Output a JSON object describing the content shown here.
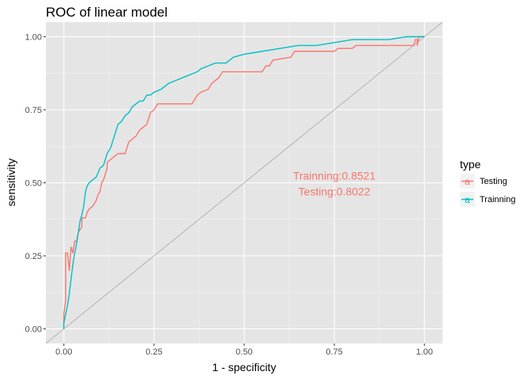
{
  "chart_data": {
    "type": "line",
    "title": "ROC of linear model",
    "xlabel": "1 - specificity",
    "ylabel": "sensitivity",
    "xlim": [
      -0.05,
      1.05
    ],
    "ylim": [
      -0.05,
      1.05
    ],
    "x_ticks": [
      "0.00",
      "0.25",
      "0.50",
      "0.75",
      "1.00"
    ],
    "y_ticks": [
      "0.00",
      "0.25",
      "0.50",
      "0.75",
      "1.00"
    ],
    "grid": true,
    "background": "#e5e5e5",
    "diagonal_reference": true,
    "legend": {
      "title": "type",
      "position": "right",
      "entries": [
        "Testing",
        "Trainning"
      ]
    },
    "annotations": [
      {
        "text": "Trainning:0.8521",
        "x": 0.75,
        "y": 0.525
      },
      {
        "text": "Testing:0.8022",
        "x": 0.75,
        "y": 0.47
      }
    ],
    "series": [
      {
        "name": "Testing",
        "color": "#f8766d",
        "points": [
          [
            0,
            0
          ],
          [
            0,
            0.05
          ],
          [
            0.005,
            0.1
          ],
          [
            0.005,
            0.26
          ],
          [
            0.01,
            0.26
          ],
          [
            0.015,
            0.2
          ],
          [
            0.02,
            0.28
          ],
          [
            0.025,
            0.26
          ],
          [
            0.03,
            0.3
          ],
          [
            0.035,
            0.3
          ],
          [
            0.04,
            0.33
          ],
          [
            0.05,
            0.35
          ],
          [
            0.05,
            0.38
          ],
          [
            0.06,
            0.38
          ],
          [
            0.065,
            0.4
          ],
          [
            0.07,
            0.41
          ],
          [
            0.08,
            0.42
          ],
          [
            0.09,
            0.44
          ],
          [
            0.095,
            0.46
          ],
          [
            0.1,
            0.47
          ],
          [
            0.105,
            0.5
          ],
          [
            0.11,
            0.51
          ],
          [
            0.115,
            0.53
          ],
          [
            0.12,
            0.55
          ],
          [
            0.12,
            0.57
          ],
          [
            0.13,
            0.58
          ],
          [
            0.14,
            0.59
          ],
          [
            0.15,
            0.6
          ],
          [
            0.16,
            0.6
          ],
          [
            0.17,
            0.6
          ],
          [
            0.175,
            0.62
          ],
          [
            0.18,
            0.64
          ],
          [
            0.19,
            0.65
          ],
          [
            0.2,
            0.66
          ],
          [
            0.205,
            0.67
          ],
          [
            0.21,
            0.68
          ],
          [
            0.22,
            0.69
          ],
          [
            0.23,
            0.7
          ],
          [
            0.235,
            0.72
          ],
          [
            0.24,
            0.74
          ],
          [
            0.25,
            0.75
          ],
          [
            0.26,
            0.77
          ],
          [
            0.31,
            0.77
          ],
          [
            0.355,
            0.77
          ],
          [
            0.37,
            0.8
          ],
          [
            0.38,
            0.81
          ],
          [
            0.4,
            0.82
          ],
          [
            0.41,
            0.84
          ],
          [
            0.43,
            0.86
          ],
          [
            0.44,
            0.88
          ],
          [
            0.5,
            0.88
          ],
          [
            0.55,
            0.88
          ],
          [
            0.56,
            0.9
          ],
          [
            0.57,
            0.9
          ],
          [
            0.58,
            0.92
          ],
          [
            0.63,
            0.93
          ],
          [
            0.64,
            0.95
          ],
          [
            0.75,
            0.95
          ],
          [
            0.76,
            0.96
          ],
          [
            0.77,
            0.96
          ],
          [
            0.78,
            0.96
          ],
          [
            0.79,
            0.96
          ],
          [
            0.8,
            0.96
          ],
          [
            0.81,
            0.97
          ],
          [
            0.82,
            0.97
          ],
          [
            0.83,
            0.97
          ],
          [
            0.84,
            0.97
          ],
          [
            0.85,
            0.97
          ],
          [
            0.86,
            0.97
          ],
          [
            0.87,
            0.97
          ],
          [
            0.88,
            0.97
          ],
          [
            0.89,
            0.97
          ],
          [
            0.9,
            0.97
          ],
          [
            0.91,
            0.97
          ],
          [
            0.92,
            0.97
          ],
          [
            0.93,
            0.97
          ],
          [
            0.94,
            0.97
          ],
          [
            0.95,
            0.97
          ],
          [
            0.96,
            0.97
          ],
          [
            0.97,
            0.97
          ],
          [
            0.975,
            0.99
          ],
          [
            0.98,
            0.99
          ],
          [
            0.98,
            0.97
          ],
          [
            0.985,
            1.0
          ],
          [
            1.0,
            1.0
          ]
        ]
      },
      {
        "name": "Trainning",
        "color": "#00bfc4",
        "points": [
          [
            0,
            0
          ],
          [
            0,
            0.02
          ],
          [
            0.005,
            0.05
          ],
          [
            0.01,
            0.08
          ],
          [
            0.015,
            0.12
          ],
          [
            0.02,
            0.17
          ],
          [
            0.025,
            0.22
          ],
          [
            0.03,
            0.26
          ],
          [
            0.035,
            0.29
          ],
          [
            0.04,
            0.33
          ],
          [
            0.045,
            0.37
          ],
          [
            0.05,
            0.39
          ],
          [
            0.055,
            0.42
          ],
          [
            0.06,
            0.47
          ],
          [
            0.065,
            0.49
          ],
          [
            0.07,
            0.5
          ],
          [
            0.08,
            0.51
          ],
          [
            0.09,
            0.52
          ],
          [
            0.1,
            0.55
          ],
          [
            0.11,
            0.56
          ],
          [
            0.12,
            0.6
          ],
          [
            0.13,
            0.62
          ],
          [
            0.14,
            0.66
          ],
          [
            0.15,
            0.7
          ],
          [
            0.16,
            0.71
          ],
          [
            0.17,
            0.73
          ],
          [
            0.18,
            0.74
          ],
          [
            0.19,
            0.76
          ],
          [
            0.2,
            0.77
          ],
          [
            0.21,
            0.78
          ],
          [
            0.22,
            0.78
          ],
          [
            0.23,
            0.8
          ],
          [
            0.24,
            0.8
          ],
          [
            0.25,
            0.81
          ],
          [
            0.27,
            0.82
          ],
          [
            0.29,
            0.84
          ],
          [
            0.31,
            0.85
          ],
          [
            0.33,
            0.86
          ],
          [
            0.35,
            0.87
          ],
          [
            0.37,
            0.88
          ],
          [
            0.38,
            0.89
          ],
          [
            0.4,
            0.9
          ],
          [
            0.42,
            0.91
          ],
          [
            0.45,
            0.91
          ],
          [
            0.47,
            0.93
          ],
          [
            0.5,
            0.94
          ],
          [
            0.55,
            0.95
          ],
          [
            0.6,
            0.96
          ],
          [
            0.65,
            0.97
          ],
          [
            0.7,
            0.97
          ],
          [
            0.75,
            0.98
          ],
          [
            0.8,
            0.99
          ],
          [
            0.85,
            0.99
          ],
          [
            0.9,
            0.99
          ],
          [
            0.95,
            1.0
          ],
          [
            0.97,
            1.0
          ],
          [
            0.98,
            1.0
          ],
          [
            1.0,
            1.0
          ]
        ]
      }
    ]
  }
}
